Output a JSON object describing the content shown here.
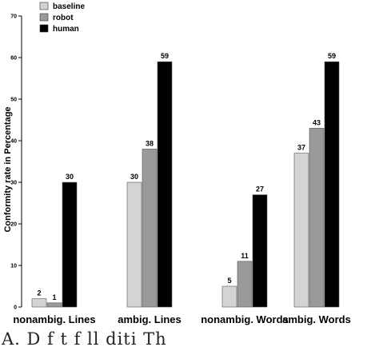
{
  "chart_data": {
    "type": "bar",
    "ylabel": "Conformity rate in Percentage",
    "ylim": [
      0,
      70
    ],
    "yticks": [
      0,
      10,
      20,
      30,
      40,
      50,
      60,
      70
    ],
    "categories": [
      "nonambig. Lines",
      "ambig. Lines",
      "nonambig. Words",
      "ambig. Words"
    ],
    "series": [
      {
        "name": "baseline",
        "color": "#d4d4d4",
        "values": [
          2,
          30,
          5,
          37
        ]
      },
      {
        "name": "robot",
        "color": "#9a9a9a",
        "values": [
          1,
          38,
          11,
          43
        ]
      },
      {
        "name": "human",
        "color": "#000000",
        "values": [
          30,
          59,
          27,
          59
        ]
      }
    ],
    "data_labels": [
      [
        "2",
        "30",
        "5",
        "37"
      ],
      [
        "1",
        "38",
        "11",
        "43"
      ],
      [
        "30",
        "59",
        "27",
        "59"
      ]
    ],
    "legend_position": "top-left",
    "grid": false
  },
  "caption_fragment": "A. D                                  f      t  f   ll   diti     Th"
}
